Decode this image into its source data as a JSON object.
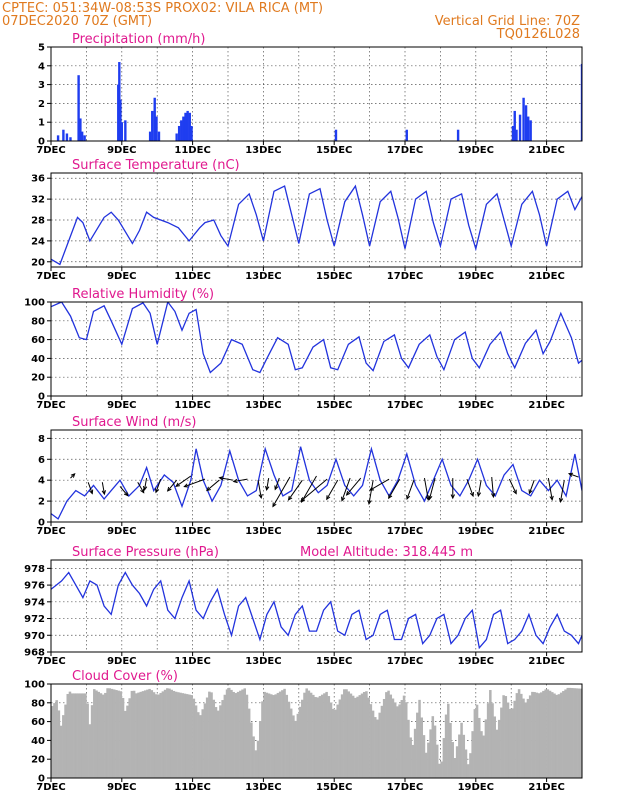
{
  "header": {
    "line1_left": "CPTEC:   051:34W-08:53S   PROX02: VILA RICA (MT)",
    "line2_left": "07DEC2020 70Z (GMT)",
    "line2_right": "Vertical Grid Line: 70Z",
    "line3_right": "TQ0126L028"
  },
  "colors": {
    "header_text": "#e07a1f",
    "panel_title": "#e0198f",
    "series_line": "#2233dd",
    "precip_bar": "#1f3df0",
    "cloud_fill": "#b3b3b3",
    "wind_arrow": "#000000"
  },
  "x_axis": {
    "days_min": 0,
    "days_max": 15,
    "tick_days": [
      0,
      2,
      4,
      6,
      8,
      10,
      12,
      14
    ],
    "tick_labels": [
      "7DEC",
      "9DEC",
      "11DEC",
      "13DEC",
      "15DEC",
      "17DEC",
      "19DEC",
      "21DEC"
    ],
    "grid_days": [
      1,
      2,
      3,
      4,
      5,
      6,
      7,
      8,
      9,
      10,
      11,
      12,
      13,
      14
    ]
  },
  "chart_data": [
    {
      "id": "precip",
      "type": "bar",
      "title": "Precipitation (mm/h)",
      "ylim": [
        0,
        5
      ],
      "yticks": [
        0,
        1,
        2,
        3,
        4,
        5
      ],
      "bars": [
        [
          0.2,
          0.3
        ],
        [
          0.35,
          0.6
        ],
        [
          0.45,
          0.4
        ],
        [
          0.55,
          0.2
        ],
        [
          0.78,
          3.5
        ],
        [
          0.83,
          1.2
        ],
        [
          0.88,
          0.5
        ],
        [
          0.95,
          0.3
        ],
        [
          1.9,
          3.0
        ],
        [
          1.93,
          4.2
        ],
        [
          1.96,
          2.2
        ],
        [
          2.0,
          1.0
        ],
        [
          2.1,
          1.1
        ],
        [
          2.8,
          0.5
        ],
        [
          2.86,
          1.6
        ],
        [
          2.93,
          2.3
        ],
        [
          2.98,
          1.3
        ],
        [
          3.05,
          0.5
        ],
        [
          3.55,
          0.4
        ],
        [
          3.62,
          0.8
        ],
        [
          3.68,
          1.1
        ],
        [
          3.74,
          1.3
        ],
        [
          3.8,
          1.5
        ],
        [
          3.86,
          1.6
        ],
        [
          3.92,
          1.5
        ],
        [
          3.97,
          0.8
        ],
        [
          8.05,
          0.6
        ],
        [
          10.05,
          0.6
        ],
        [
          11.5,
          0.6
        ],
        [
          13.05,
          0.8
        ],
        [
          13.1,
          1.6
        ],
        [
          13.15,
          0.6
        ],
        [
          13.25,
          1.4
        ],
        [
          13.35,
          2.3
        ],
        [
          13.42,
          1.9
        ],
        [
          13.48,
          1.3
        ],
        [
          13.55,
          1.1
        ],
        [
          15.0,
          4.1
        ]
      ]
    },
    {
      "id": "temp",
      "type": "line",
      "title": "Surface Temperature (nC)",
      "ylim": [
        19,
        37
      ],
      "yticks": [
        20,
        24,
        28,
        32,
        36
      ],
      "x": [
        0,
        0.25,
        0.5,
        0.75,
        0.9,
        1.1,
        1.5,
        1.7,
        1.9,
        2.3,
        2.5,
        2.7,
        2.9,
        3.3,
        3.6,
        3.9,
        4.2,
        4.35,
        4.6,
        4.8,
        5.0,
        5.3,
        5.6,
        5.8,
        6.0,
        6.3,
        6.6,
        6.8,
        7.0,
        7.3,
        7.6,
        7.8,
        8.0,
        8.3,
        8.6,
        8.8,
        9.0,
        9.3,
        9.6,
        9.8,
        10.0,
        10.3,
        10.6,
        10.8,
        11.0,
        11.3,
        11.6,
        11.8,
        12.0,
        12.3,
        12.6,
        12.8,
        13.0,
        13.3,
        13.6,
        13.8,
        14.0,
        14.3,
        14.6,
        14.8,
        15.0
      ],
      "y": [
        20.5,
        19.5,
        24.0,
        28.5,
        27.5,
        24.0,
        28.5,
        29.5,
        28.0,
        23.5,
        26.0,
        29.5,
        28.5,
        27.5,
        26.5,
        24.0,
        26.5,
        27.5,
        28.0,
        25.0,
        23.0,
        31.0,
        33.0,
        29.0,
        24.0,
        33.5,
        34.5,
        29.0,
        23.5,
        33.0,
        34.0,
        28.0,
        23.0,
        31.5,
        34.5,
        29.0,
        23.0,
        31.5,
        33.5,
        28.5,
        22.5,
        32.0,
        33.5,
        27.5,
        23.0,
        32.0,
        33.0,
        27.0,
        22.5,
        31.0,
        33.0,
        28.0,
        23.0,
        31.0,
        33.5,
        29.0,
        23.0,
        32.0,
        33.5,
        30.0,
        32.5
      ]
    },
    {
      "id": "rh",
      "type": "line",
      "title": "Relative Humidity (%)",
      "ylim": [
        0,
        100
      ],
      "yticks": [
        0,
        20,
        40,
        60,
        80,
        100
      ],
      "x": [
        0,
        0.3,
        0.55,
        0.8,
        1.0,
        1.2,
        1.5,
        1.7,
        2.0,
        2.3,
        2.6,
        2.8,
        3.0,
        3.3,
        3.5,
        3.7,
        3.9,
        4.1,
        4.3,
        4.5,
        4.8,
        5.1,
        5.4,
        5.7,
        5.9,
        6.1,
        6.4,
        6.7,
        6.9,
        7.1,
        7.4,
        7.7,
        7.9,
        8.1,
        8.4,
        8.7,
        8.9,
        9.1,
        9.4,
        9.7,
        9.9,
        10.1,
        10.4,
        10.7,
        10.9,
        11.1,
        11.4,
        11.7,
        11.9,
        12.1,
        12.4,
        12.7,
        12.9,
        13.1,
        13.4,
        13.7,
        13.9,
        14.1,
        14.4,
        14.7,
        14.9,
        15.0
      ],
      "y": [
        95,
        100,
        85,
        62,
        60,
        90,
        96,
        80,
        55,
        93,
        99,
        88,
        55,
        100,
        90,
        70,
        88,
        92,
        45,
        25,
        35,
        60,
        55,
        28,
        25,
        40,
        62,
        55,
        28,
        30,
        52,
        60,
        30,
        28,
        55,
        63,
        35,
        27,
        58,
        65,
        40,
        30,
        55,
        65,
        42,
        28,
        60,
        68,
        40,
        30,
        55,
        68,
        45,
        30,
        56,
        70,
        45,
        58,
        88,
        62,
        35,
        38
      ]
    },
    {
      "id": "wind",
      "type": "line",
      "title": "Surface Wind (m/s)",
      "ylim": [
        0,
        8.8
      ],
      "yticks": [
        0,
        2,
        4,
        6,
        8
      ],
      "x": [
        0,
        0.2,
        0.45,
        0.7,
        0.95,
        1.2,
        1.5,
        1.7,
        1.95,
        2.2,
        2.5,
        2.7,
        2.9,
        3.2,
        3.45,
        3.7,
        3.95,
        4.1,
        4.3,
        4.55,
        4.8,
        5.05,
        5.3,
        5.55,
        5.8,
        6.05,
        6.3,
        6.55,
        6.8,
        7.05,
        7.3,
        7.55,
        7.8,
        8.05,
        8.3,
        8.55,
        8.8,
        9.05,
        9.3,
        9.55,
        9.8,
        10.05,
        10.3,
        10.55,
        10.8,
        11.05,
        11.3,
        11.55,
        11.8,
        12.05,
        12.3,
        12.55,
        12.8,
        13.05,
        13.3,
        13.55,
        13.8,
        14.05,
        14.3,
        14.55,
        14.8,
        15.0
      ],
      "y": [
        0.8,
        0.3,
        2.0,
        3.0,
        2.5,
        3.5,
        2.2,
        3.0,
        4.0,
        2.5,
        3.5,
        5.2,
        3.0,
        4.5,
        3.8,
        1.5,
        4.0,
        7.0,
        4.0,
        2.0,
        3.5,
        6.8,
        4.0,
        2.5,
        3.0,
        7.0,
        4.5,
        2.5,
        3.0,
        7.2,
        4.0,
        2.8,
        3.5,
        6.0,
        3.5,
        2.5,
        3.5,
        7.0,
        4.0,
        2.5,
        4.0,
        6.5,
        3.5,
        2.0,
        4.0,
        6.0,
        3.5,
        2.5,
        4.0,
        6.0,
        3.5,
        2.5,
        4.5,
        5.5,
        3.0,
        2.5,
        4.0,
        3.0,
        4.0,
        2.5,
        6.5,
        3.0
      ],
      "arrows": [
        [
          0.55,
          4.2,
          45,
          6
        ],
        [
          1.05,
          3.8,
          160,
          12
        ],
        [
          1.45,
          3.8,
          170,
          12
        ],
        [
          1.95,
          3.4,
          140,
          12
        ],
        [
          2.45,
          3.8,
          150,
          12
        ],
        [
          2.7,
          4.2,
          190,
          12
        ],
        [
          3.1,
          4.1,
          200,
          14
        ],
        [
          3.55,
          4.0,
          220,
          14
        ],
        [
          3.95,
          4.4,
          235,
          18
        ],
        [
          4.35,
          4.1,
          250,
          22
        ],
        [
          4.75,
          4.0,
          230,
          16
        ],
        [
          5.15,
          4.0,
          280,
          14
        ],
        [
          5.55,
          4.1,
          260,
          14
        ],
        [
          5.85,
          4.0,
          170,
          18
        ],
        [
          6.15,
          4.2,
          190,
          12
        ],
        [
          6.45,
          4.2,
          200,
          12
        ],
        [
          6.75,
          4.3,
          210,
          34
        ],
        [
          7.1,
          4.0,
          215,
          24
        ],
        [
          7.5,
          4.4,
          210,
          30
        ],
        [
          7.8,
          4.1,
          230,
          34
        ],
        [
          8.1,
          4.0,
          210,
          22
        ],
        [
          8.45,
          4.2,
          200,
          24
        ],
        [
          8.75,
          4.2,
          220,
          22
        ],
        [
          9.1,
          4.0,
          190,
          24
        ],
        [
          9.55,
          4.1,
          240,
          22
        ],
        [
          9.85,
          4.1,
          210,
          22
        ],
        [
          10.25,
          4.0,
          200,
          20
        ],
        [
          10.55,
          4.2,
          170,
          22
        ],
        [
          10.85,
          4.2,
          195,
          22
        ],
        [
          11.35,
          4.2,
          180,
          20
        ],
        [
          11.75,
          4.1,
          160,
          18
        ],
        [
          12.15,
          4.0,
          190,
          16
        ],
        [
          12.45,
          4.3,
          175,
          20
        ],
        [
          12.95,
          4.1,
          155,
          16
        ],
        [
          13.65,
          4.0,
          200,
          14
        ],
        [
          14.05,
          4.2,
          170,
          22
        ],
        [
          14.5,
          4.0,
          190,
          22
        ],
        [
          14.9,
          4.3,
          290,
          10
        ]
      ]
    },
    {
      "id": "pres",
      "type": "line",
      "title": "Surface Pressure (hPa)",
      "annotation": "Model Altitude: 318.445 m",
      "ylim": [
        968,
        979
      ],
      "yticks": [
        968,
        970,
        972,
        974,
        976,
        978
      ],
      "x": [
        0,
        0.15,
        0.3,
        0.5,
        0.7,
        0.9,
        1.1,
        1.3,
        1.5,
        1.7,
        1.9,
        2.1,
        2.3,
        2.5,
        2.7,
        2.9,
        3.1,
        3.3,
        3.5,
        3.7,
        3.9,
        4.1,
        4.3,
        4.5,
        4.7,
        4.9,
        5.1,
        5.3,
        5.5,
        5.7,
        5.9,
        6.1,
        6.3,
        6.5,
        6.7,
        6.9,
        7.1,
        7.3,
        7.5,
        7.7,
        7.9,
        8.1,
        8.3,
        8.5,
        8.7,
        8.9,
        9.1,
        9.3,
        9.5,
        9.7,
        9.9,
        10.1,
        10.3,
        10.5,
        10.7,
        10.9,
        11.1,
        11.3,
        11.5,
        11.7,
        11.9,
        12.1,
        12.3,
        12.5,
        12.7,
        12.9,
        13.1,
        13.3,
        13.5,
        13.7,
        13.9,
        14.1,
        14.3,
        14.5,
        14.7,
        14.9,
        15.0
      ],
      "y": [
        975.5,
        976.0,
        976.5,
        977.5,
        976.0,
        974.5,
        976.5,
        976.0,
        973.5,
        972.5,
        976.0,
        977.5,
        976.0,
        975.0,
        973.5,
        975.5,
        976.5,
        973.0,
        972.0,
        974.5,
        976.5,
        973.0,
        972.0,
        974.0,
        975.5,
        972.5,
        970.0,
        973.5,
        974.5,
        972.0,
        969.5,
        972.5,
        974.0,
        971.0,
        970.0,
        972.5,
        973.5,
        970.5,
        970.5,
        973.0,
        974.0,
        970.5,
        970.0,
        972.5,
        973.0,
        969.5,
        970.0,
        972.5,
        973.0,
        969.5,
        969.5,
        972.0,
        972.5,
        969.0,
        970.0,
        972.0,
        972.5,
        969.0,
        970.0,
        972.0,
        973.0,
        968.5,
        969.5,
        972.5,
        973.0,
        969.0,
        969.5,
        970.5,
        972.5,
        970.0,
        969.0,
        971.0,
        972.5,
        970.5,
        970.0,
        969.0,
        970.0
      ]
    },
    {
      "id": "cloud",
      "type": "area",
      "title": "Cloud Cover (%)",
      "ylim": [
        0,
        100
      ],
      "yticks": [
        0,
        20,
        40,
        60,
        80,
        100
      ],
      "x": [
        0,
        0.2,
        0.25,
        0.5,
        0.55,
        1.0,
        1.1,
        1.2,
        1.5,
        1.6,
        2.0,
        2.1,
        2.3,
        2.4,
        2.8,
        3.0,
        3.3,
        3.5,
        4.0,
        4.2,
        4.5,
        4.7,
        5.0,
        5.2,
        5.5,
        5.8,
        6.0,
        6.3,
        6.6,
        6.9,
        7.2,
        7.5,
        7.8,
        8.0,
        8.3,
        8.6,
        8.9,
        9.2,
        9.5,
        9.8,
        10.0,
        10.2,
        10.4,
        10.6,
        10.8,
        11.0,
        11.2,
        11.4,
        11.6,
        11.8,
        12.0,
        12.2,
        12.4,
        12.6,
        12.8,
        13.0,
        13.2,
        13.4,
        13.6,
        13.8,
        14.0,
        14.3,
        14.6,
        15.0
      ],
      "y": [
        75,
        85,
        50,
        95,
        90,
        90,
        55,
        95,
        88,
        96,
        92,
        70,
        95,
        90,
        95,
        88,
        96,
        92,
        88,
        65,
        95,
        70,
        97,
        90,
        96,
        25,
        92,
        88,
        95,
        60,
        96,
        85,
        92,
        70,
        96,
        85,
        93,
        60,
        95,
        75,
        90,
        30,
        85,
        25,
        70,
        5,
        85,
        20,
        60,
        10,
        85,
        40,
        95,
        50,
        92,
        70,
        96,
        80,
        92,
        90,
        95,
        88,
        96,
        95
      ]
    }
  ]
}
